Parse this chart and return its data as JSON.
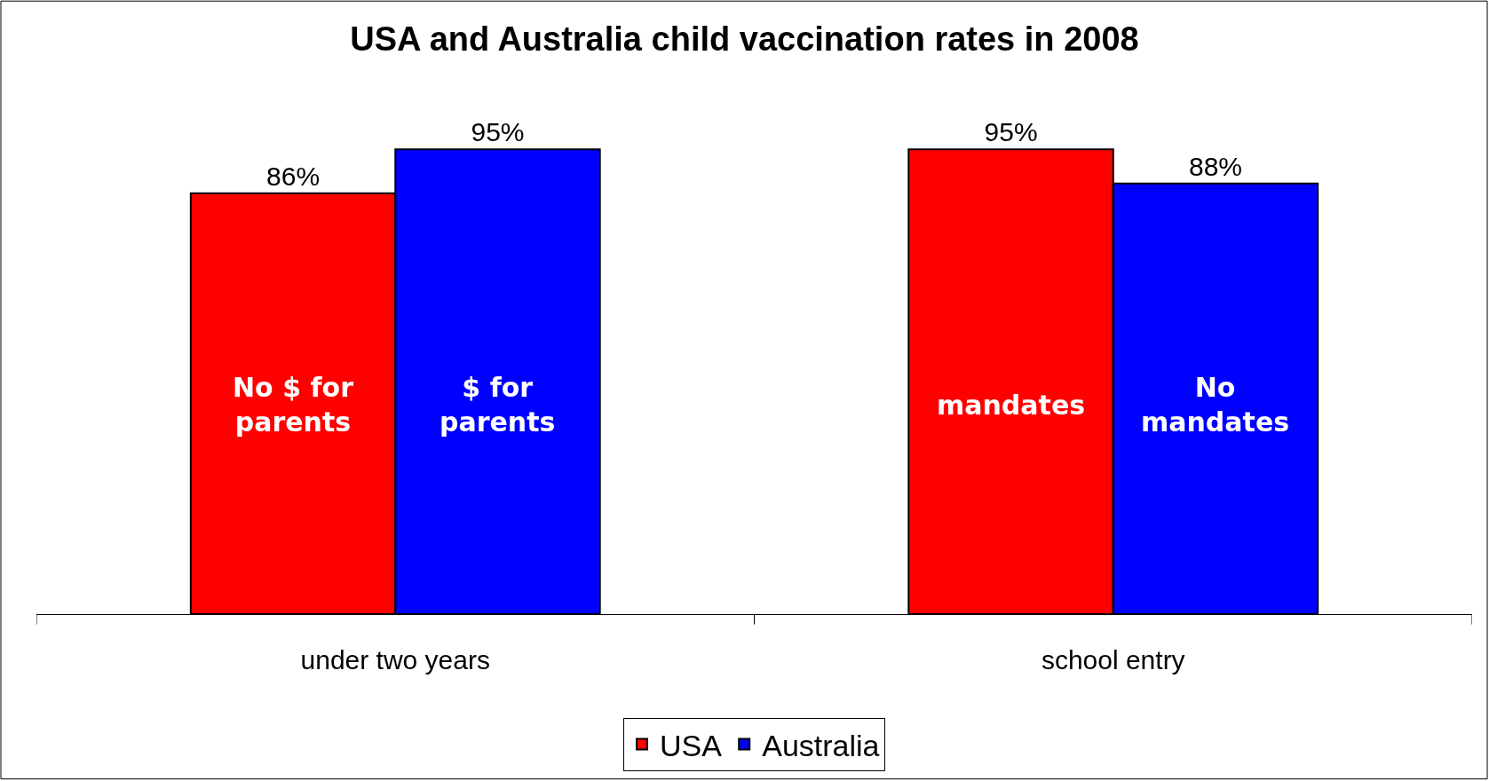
{
  "chart_data": {
    "type": "bar",
    "title": "USA and Australia child vaccination rates in 2008",
    "categories": [
      "under two years",
      "school entry"
    ],
    "series": [
      {
        "name": "USA",
        "color": "#ff0000",
        "values": [
          86,
          95
        ],
        "value_labels": [
          "86%",
          "95%"
        ]
      },
      {
        "name": "Australia",
        "color": "#0000ff",
        "values": [
          95,
          88
        ],
        "value_labels": [
          "95%",
          "88%"
        ]
      }
    ],
    "annotations": [
      "No $ for\nparents",
      "$ for\nparents",
      "mandates",
      "No\nmandates"
    ],
    "legend": "bottom"
  }
}
